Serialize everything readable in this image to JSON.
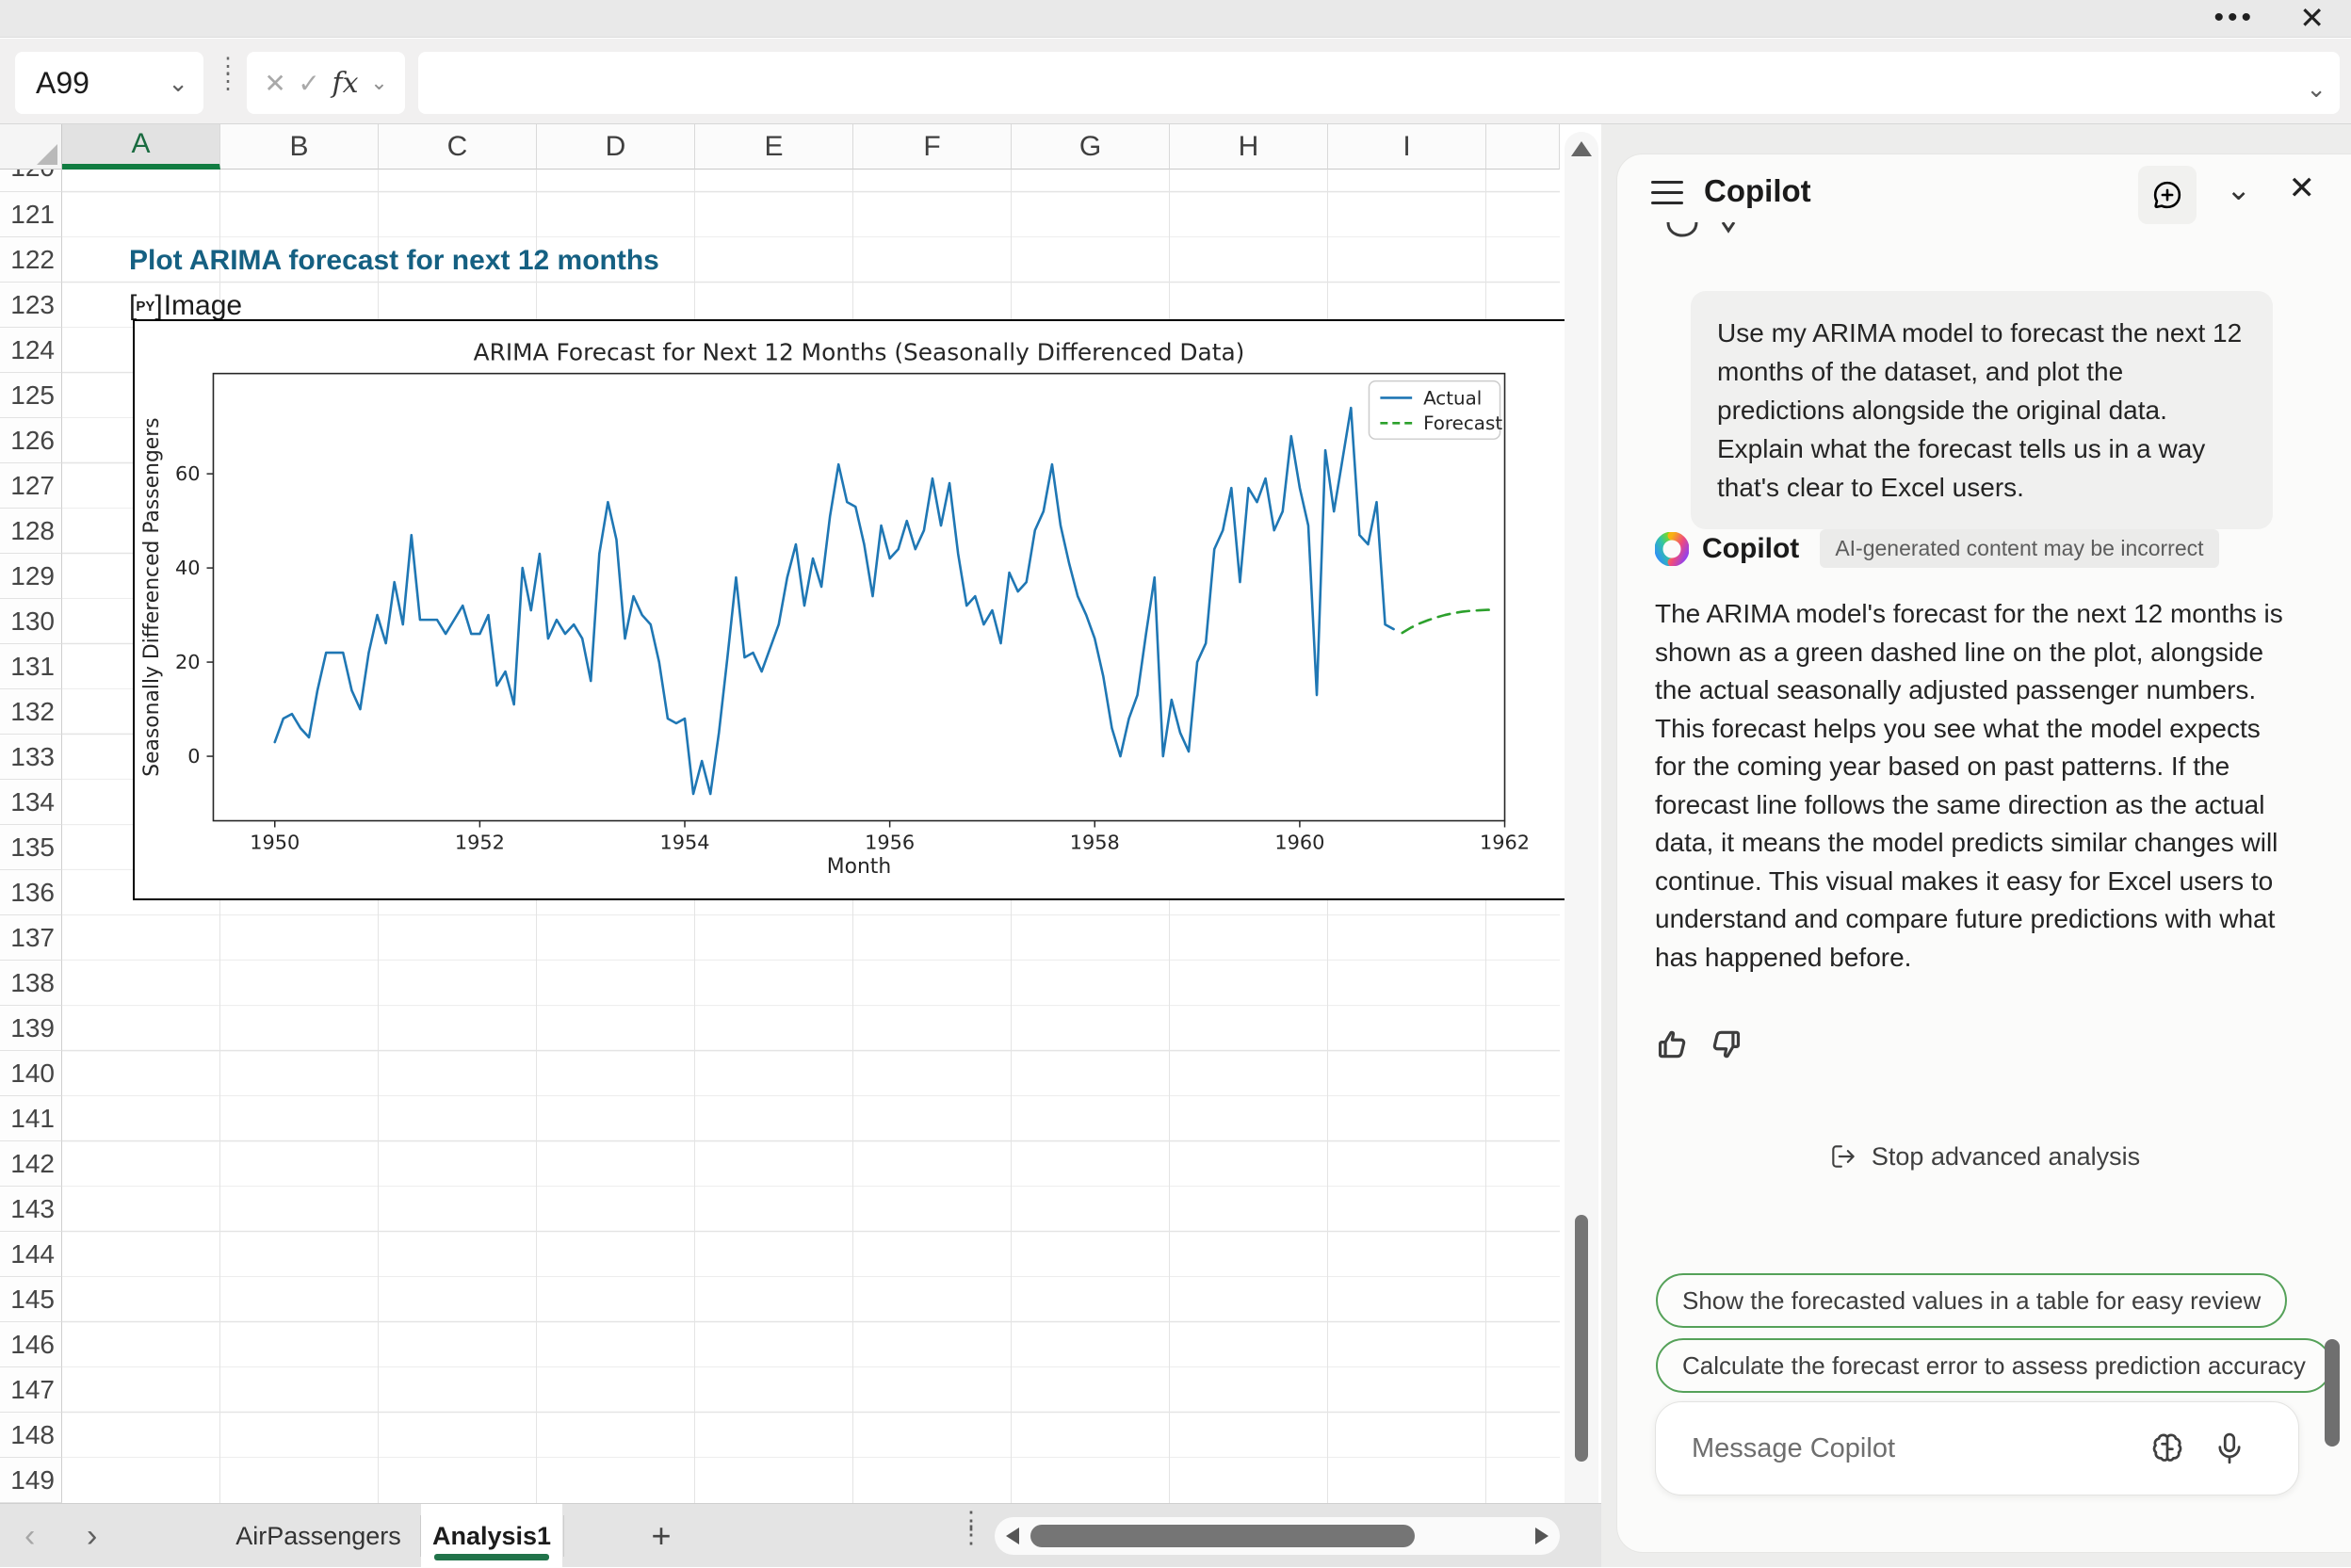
{
  "window": {
    "more_icon": "•••",
    "close_icon": "✕"
  },
  "formula_bar": {
    "name_box_value": "A99",
    "cancel_icon": "✕",
    "enter_icon": "✓",
    "fx_label": "fx",
    "formula_value": "",
    "chevron": "⌄",
    "kebab": "⋮"
  },
  "grid": {
    "columns": [
      "A",
      "B",
      "C",
      "D",
      "E",
      "F",
      "G",
      "H",
      "I"
    ],
    "selected_column": "A",
    "partial_row_number": "120",
    "row_numbers": [
      121,
      122,
      123,
      124,
      125,
      126,
      127,
      128,
      129,
      130,
      131,
      132,
      133,
      134,
      135,
      136,
      137,
      138,
      139,
      140,
      141,
      142,
      143,
      144,
      145,
      146,
      147,
      148,
      149
    ],
    "cells": {
      "a121": "Plot ARIMA forecast for next 12 months",
      "a122_badge_open": "[",
      "a122_badge": "PY",
      "a122_badge_close": "]",
      "a122_label": "Image"
    }
  },
  "chart_data": {
    "type": "line",
    "title": "ARIMA Forecast for Next 12 Months (Seasonally Differenced Data)",
    "xlabel": "Month",
    "ylabel": "Seasonally Differenced Passengers",
    "xticks": [
      1950,
      1952,
      1954,
      1956,
      1958,
      1960,
      1962
    ],
    "yticks": [
      0,
      20,
      40,
      60
    ],
    "xlim": [
      1949.4,
      1962.0
    ],
    "ylim": [
      -13.7,
      81.3
    ],
    "legend_position": "upper right",
    "grid": false,
    "series": [
      {
        "name": "Actual",
        "color": "#1f77b4",
        "style": "solid",
        "x_start": 1950.0,
        "x_step_months": 1,
        "values": [
          3,
          8,
          9,
          6,
          4,
          14,
          22,
          22,
          22,
          14,
          10,
          22,
          30,
          24,
          37,
          28,
          47,
          29,
          29,
          29,
          26,
          29,
          32,
          26,
          26,
          30,
          15,
          18,
          11,
          40,
          31,
          43,
          25,
          29,
          26,
          28,
          25,
          16,
          43,
          54,
          46,
          25,
          34,
          30,
          28,
          20,
          8,
          7,
          8,
          -8,
          -1,
          -8,
          5,
          21,
          38,
          21,
          22,
          18,
          23,
          28,
          38,
          45,
          32,
          42,
          36,
          51,
          62,
          54,
          53,
          45,
          34,
          49,
          42,
          44,
          50,
          44,
          48,
          59,
          49,
          58,
          43,
          32,
          34,
          28,
          31,
          24,
          39,
          35,
          37,
          48,
          52,
          62,
          49,
          41,
          34,
          30,
          25,
          17,
          6,
          0,
          8,
          13,
          26,
          38,
          0,
          12,
          5,
          1,
          20,
          24,
          44,
          48,
          57,
          37,
          57,
          54,
          59,
          48,
          52,
          68,
          57,
          49,
          13,
          65,
          52,
          63,
          74,
          47,
          45,
          54,
          28,
          27
        ]
      },
      {
        "name": "Forecast",
        "color": "#2ca02c",
        "style": "dashed",
        "x_start": 1961.0,
        "x_step_months": 1,
        "values": [
          26.2,
          27.3,
          28.2,
          28.9,
          29.5,
          30.0,
          30.4,
          30.7,
          30.9,
          31.0,
          31.1,
          31.1
        ]
      }
    ]
  },
  "copilot": {
    "title": "Copilot",
    "user_message": "Use my ARIMA model to forecast the next 12 months of the dataset, and plot the predictions alongside the original data. Explain what the forecast tells us in a way that's clear to Excel users.",
    "sender": "Copilot",
    "disclaimer": "AI-generated content may be incorrect",
    "response": "The ARIMA model's forecast for the next 12 months is shown as a green dashed line on the plot, alongside the actual seasonally adjusted passenger numbers. This forecast helps you see what the model expects for the coming year based on past patterns. If the forecast line follows the same direction as the actual data, it means the model predicts similar changes will continue. This visual makes it easy for Excel users to understand and compare future predictions with what has happened before.",
    "stop_label": "Stop advanced analysis",
    "suggestions": [
      "Show the forecasted values in a table for easy review",
      "Calculate the forecast error to assess prediction accuracy"
    ],
    "input_placeholder": "Message Copilot",
    "close_icon": "✕",
    "chevron_down": "⌄"
  },
  "sheet_tabs": {
    "prev_icon": "‹",
    "next_icon": "›",
    "tabs": [
      "AirPassengers",
      "Analysis1"
    ],
    "active_tab": "Analysis1",
    "add_label": "+",
    "kebab": "⋮"
  }
}
